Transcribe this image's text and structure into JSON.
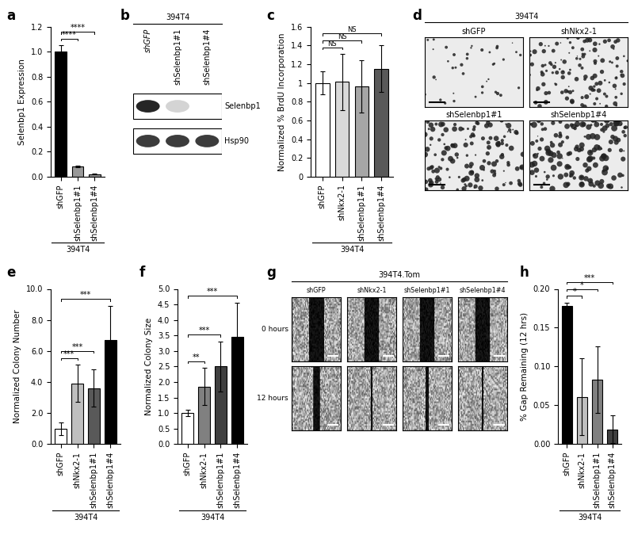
{
  "chart_data": [
    {
      "panel": "a",
      "type": "bar",
      "ylabel": "Selenbp1 Expression",
      "group_label": "394T4",
      "categories": [
        "shGFP",
        "shSelenbp1#1",
        "shSelenbp1#4"
      ],
      "values": [
        1.0,
        0.08,
        0.02
      ],
      "errors": [
        0.05,
        0.006,
        0.005
      ],
      "colors": [
        "#000000",
        "#999999",
        "#999999"
      ],
      "ylim": [
        0,
        1.2
      ],
      "yticks": [
        {
          "value": 0,
          "label": "0.0"
        },
        {
          "value": 0.2,
          "label": "0.2"
        },
        {
          "value": 0.4,
          "label": "0.4"
        },
        {
          "value": 0.6,
          "label": "0.6"
        },
        {
          "value": 0.8,
          "label": "0.8"
        },
        {
          "value": 1.0,
          "label": "1.0"
        },
        {
          "value": 1.2,
          "label": "1.2"
        }
      ],
      "significance": [
        {
          "from": "shGFP",
          "to": "shSelenbp1#1",
          "label": "****"
        },
        {
          "from": "shGFP",
          "to": "shSelenbp1#4",
          "label": "****"
        }
      ]
    },
    {
      "panel": "b",
      "type": "blot",
      "title": "394T4",
      "lanes": [
        "shGFP",
        "shSelenbp1#1",
        "shSelenbp1#4"
      ],
      "bands": [
        {
          "name": "Selenbp1",
          "intensity": [
            1.0,
            0.2,
            0.0
          ]
        },
        {
          "name": "Hsp90",
          "intensity": [
            0.9,
            0.9,
            0.9
          ]
        }
      ]
    },
    {
      "panel": "c",
      "type": "bar",
      "ylabel": "Normalized % BrdU Incorporation",
      "group_label": "394T4",
      "categories": [
        "shGFP",
        "shNkx2-1",
        "shSelenbp1#1",
        "shSelenbp1#4"
      ],
      "values": [
        1.0,
        1.01,
        0.96,
        1.15
      ],
      "errors": [
        0.12,
        0.3,
        0.28,
        0.25
      ],
      "colors": [
        "#ffffff",
        "#d9d9d9",
        "#a6a6a6",
        "#595959"
      ],
      "ylim": [
        0,
        1.6
      ],
      "yticks": [
        {
          "value": 0,
          "label": "0"
        },
        {
          "value": 0.2,
          "label": "0.2"
        },
        {
          "value": 0.4,
          "label": "0.4"
        },
        {
          "value": 0.6,
          "label": "0.6"
        },
        {
          "value": 0.8,
          "label": "0.8"
        },
        {
          "value": 1.0,
          "label": "1"
        },
        {
          "value": 1.2,
          "label": "1.2"
        },
        {
          "value": 1.4,
          "label": "1.4"
        },
        {
          "value": 1.6,
          "label": "1.6"
        }
      ],
      "significance": [
        {
          "from": "shGFP",
          "to": "shNkx2-1",
          "label": "NS"
        },
        {
          "from": "shGFP",
          "to": "shSelenbp1#1",
          "label": "NS"
        },
        {
          "from": "shGFP",
          "to": "shSelenbp1#4",
          "label": "NS"
        }
      ]
    },
    {
      "panel": "d",
      "type": "image_grid",
      "title": "394T4",
      "columns": [
        "shGFP",
        "shNkx2-1",
        "shSelenbp1#1",
        "shSelenbp1#4"
      ]
    },
    {
      "panel": "e",
      "type": "bar",
      "ylabel": "Normalized Colony Number",
      "group_label": "394T4",
      "categories": [
        "shGFP",
        "shNkx2-1",
        "shSelenbp1#1",
        "shSelenbp1#4"
      ],
      "values": [
        1.0,
        3.9,
        3.6,
        6.7
      ],
      "errors": [
        0.4,
        1.2,
        1.2,
        2.2
      ],
      "colors": [
        "#ffffff",
        "#bfbfbf",
        "#595959",
        "#000000"
      ],
      "ylim": [
        0,
        10
      ],
      "yticks": [
        {
          "value": 0,
          "label": "0.0"
        },
        {
          "value": 2,
          "label": "2.0"
        },
        {
          "value": 4,
          "label": "4.0"
        },
        {
          "value": 6,
          "label": "6.0"
        },
        {
          "value": 8,
          "label": "8.0"
        },
        {
          "value": 10,
          "label": "10.0"
        }
      ],
      "significance": [
        {
          "from": "shGFP",
          "to": "shNkx2-1",
          "label": "***"
        },
        {
          "from": "shGFP",
          "to": "shSelenbp1#1",
          "label": "***"
        },
        {
          "from": "shGFP",
          "to": "shSelenbp1#4",
          "label": "***"
        }
      ]
    },
    {
      "panel": "f",
      "type": "bar",
      "ylabel": "Normalized Colony Size",
      "group_label": "394T4",
      "categories": [
        "shGFP",
        "shNkx2-1",
        "shSelenbp1#1",
        "shSelenbp1#4"
      ],
      "values": [
        1.0,
        1.85,
        2.5,
        3.45
      ],
      "errors": [
        0.1,
        0.6,
        0.8,
        1.1
      ],
      "colors": [
        "#ffffff",
        "#808080",
        "#404040",
        "#000000"
      ],
      "ylim": [
        0,
        5
      ],
      "yticks": [
        {
          "value": 0,
          "label": "0.0"
        },
        {
          "value": 0.5,
          "label": "0.5"
        },
        {
          "value": 1.0,
          "label": "1.0"
        },
        {
          "value": 1.5,
          "label": "1.5"
        },
        {
          "value": 2.0,
          "label": "2.0"
        },
        {
          "value": 2.5,
          "label": "2.5"
        },
        {
          "value": 3.0,
          "label": "3.0"
        },
        {
          "value": 3.5,
          "label": "3.5"
        },
        {
          "value": 4.0,
          "label": "4.0"
        },
        {
          "value": 4.5,
          "label": "4.5"
        },
        {
          "value": 5.0,
          "label": "5.0"
        }
      ],
      "significance": [
        {
          "from": "shGFP",
          "to": "shNkx2-1",
          "label": "**"
        },
        {
          "from": "shGFP",
          "to": "shSelenbp1#1",
          "label": "***"
        },
        {
          "from": "shGFP",
          "to": "shSelenbp1#4",
          "label": "***"
        }
      ]
    },
    {
      "panel": "g",
      "type": "image_grid",
      "title": "394T4.Tom",
      "columns": [
        "shGFP",
        "shNkx2-1",
        "shSelenbp1#1",
        "shSelenbp1#4"
      ],
      "rows": [
        "0 hours",
        "12 hours"
      ]
    },
    {
      "panel": "h",
      "type": "bar",
      "ylabel": "% Gap Remaining (12 hrs)",
      "group_label": "394T4",
      "categories": [
        "shGFP",
        "shNkx2-1",
        "shSelenbp1#1",
        "shSelenbp1#4"
      ],
      "values": [
        0.178,
        0.061,
        0.083,
        0.019
      ],
      "errors": [
        0.004,
        0.05,
        0.043,
        0.018
      ],
      "colors": [
        "#000000",
        "#bfbfbf",
        "#808080",
        "#404040"
      ],
      "ylim": [
        0,
        0.2
      ],
      "yticks": [
        {
          "value": 0,
          "label": "0.00"
        },
        {
          "value": 0.05,
          "label": "0.05"
        },
        {
          "value": 0.1,
          "label": "0.10"
        },
        {
          "value": 0.15,
          "label": "0.15"
        },
        {
          "value": 0.2,
          "label": "0.20"
        }
      ],
      "significance": [
        {
          "from": "shGFP",
          "to": "shNkx2-1",
          "label": "*"
        },
        {
          "from": "shGFP",
          "to": "shSelenbp1#1",
          "label": "*"
        },
        {
          "from": "shGFP",
          "to": "shSelenbp1#4",
          "label": "***"
        }
      ]
    }
  ]
}
